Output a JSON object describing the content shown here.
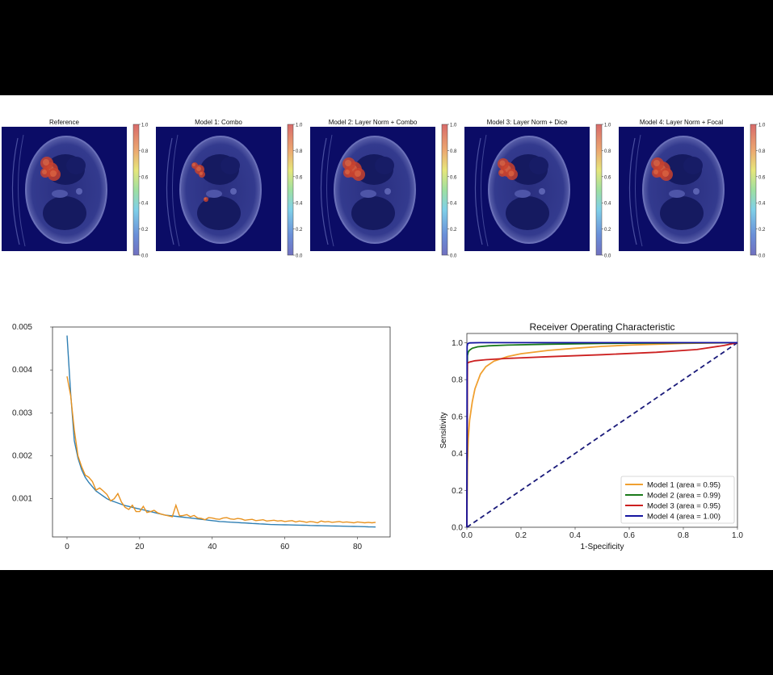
{
  "panels": [
    {
      "title": "Reference",
      "tumor": [
        [
          63,
          210,
          9
        ],
        [
          58,
          202,
          8
        ],
        [
          67,
          216,
          8
        ],
        [
          56,
          214,
          6
        ]
      ]
    },
    {
      "title": "Model 1: Combo",
      "tumor": [
        [
          247,
          210,
          6
        ],
        [
          241,
          205,
          4
        ],
        [
          250,
          216,
          4
        ],
        [
          255,
          247,
          3
        ]
      ]
    },
    {
      "title": "Model 2: Layer Norm + Combo",
      "tumor": [
        [
          438,
          210,
          10
        ],
        [
          432,
          203,
          8
        ],
        [
          444,
          216,
          8
        ],
        [
          431,
          214,
          6
        ]
      ]
    },
    {
      "title": "Model 3: Layer Norm + Dice",
      "tumor": [
        [
          629,
          210,
          9
        ],
        [
          623,
          203,
          7
        ],
        [
          634,
          216,
          7
        ],
        [
          622,
          214,
          5
        ]
      ]
    },
    {
      "title": "Model 4: Layer Norm + Focal",
      "tumor": [
        [
          820,
          210,
          10
        ],
        [
          814,
          203,
          8
        ],
        [
          825,
          216,
          8
        ],
        [
          813,
          214,
          6
        ]
      ]
    }
  ],
  "colorbar_ticks": [
    "0.0",
    "0.2",
    "0.4",
    "0.6",
    "0.8",
    "1.0"
  ],
  "colors": {
    "overlay_bg": "#0b0c66",
    "loss_train": "#2f7fb3",
    "loss_val": "#e8921f",
    "roc_model1": "#f0a030",
    "roc_model2": "#1a7a1a",
    "roc_model3": "#cc2020",
    "roc_model4": "#1515a0",
    "roc_diagonal": "#1a1a7a"
  },
  "chart_data": [
    {
      "type": "line",
      "title": "",
      "xlabel": "",
      "ylabel": "",
      "xlim": [
        -4,
        89
      ],
      "ylim": [
        0.00011,
        0.005
      ],
      "xticks": [
        0,
        20,
        40,
        60,
        80
      ],
      "yticks": [
        0.001,
        0.002,
        0.003,
        0.004,
        0.005
      ],
      "ytick_labels": [
        "0.001",
        "0.002",
        "0.003",
        "0.004",
        "0.005"
      ],
      "series": [
        {
          "values": [
            0.0048,
            0.00345,
            0.00235,
            0.00195,
            0.00168,
            0.0015,
            0.00138,
            0.00128,
            0.00118,
            0.00112,
            0.00106,
            0.001,
            0.00096,
            0.00093,
            0.0009,
            0.00087,
            0.00084,
            0.00082,
            0.0008,
            0.00078,
            0.00076,
            0.00074,
            0.00072,
            0.0007,
            0.00068,
            0.00066,
            0.00064,
            0.00062,
            0.00061,
            0.0006,
            0.00059,
            0.00058,
            0.00057,
            0.00056,
            0.00055,
            0.00054,
            0.00053,
            0.00052,
            0.00051,
            0.0005,
            0.00049,
            0.00048,
            0.00047,
            0.000465,
            0.00046,
            0.000455,
            0.00045,
            0.000445,
            0.00044,
            0.000435,
            0.00043,
            0.000425,
            0.00042,
            0.000415,
            0.00041,
            0.000405,
            0.0004,
            0.000398,
            0.000396,
            0.000394,
            0.000392,
            0.00039,
            0.000388,
            0.000386,
            0.000384,
            0.000382,
            0.00038,
            0.000378,
            0.000376,
            0.000374,
            0.000372,
            0.00037,
            0.000368,
            0.000366,
            0.000364,
            0.000362,
            0.00036,
            0.000358,
            0.000356,
            0.000354,
            0.000352,
            0.00035,
            0.000348,
            0.000346,
            0.000344,
            0.000342
          ]
        },
        {
          "values": [
            0.00385,
            0.0034,
            0.0026,
            0.002,
            0.00175,
            0.00155,
            0.0015,
            0.0014,
            0.0012,
            0.00125,
            0.00118,
            0.0011,
            0.00095,
            0.001,
            0.00112,
            0.00092,
            0.0008,
            0.00075,
            0.00085,
            0.0007,
            0.0007,
            0.00082,
            0.00068,
            0.0007,
            0.00073,
            0.00067,
            0.00064,
            0.00062,
            0.0006,
            0.00058,
            0.00085,
            0.0006,
            0.00061,
            0.00063,
            0.00058,
            0.00061,
            0.00055,
            0.00054,
            0.00051,
            0.00056,
            0.00055,
            0.00053,
            0.00052,
            0.00055,
            0.00056,
            0.00053,
            0.00052,
            0.00054,
            0.00053,
            0.0005,
            0.00051,
            0.00052,
            0.00049,
            0.0005,
            0.00051,
            0.00048,
            0.00049,
            0.0005,
            0.00048,
            0.00049,
            0.00047,
            0.00048,
            0.00049,
            0.00046,
            0.00048,
            0.00047,
            0.00045,
            0.00047,
            0.00046,
            0.00044,
            0.00048,
            0.00046,
            0.00047,
            0.00045,
            0.00046,
            0.00047,
            0.00045,
            0.00046,
            0.00045,
            0.00044,
            0.00046,
            0.00045,
            0.00044,
            0.00045,
            0.00044,
            0.00045
          ]
        }
      ]
    },
    {
      "type": "line",
      "title": "Receiver Operating Characteristic",
      "xlabel": "1-Specificity",
      "ylabel": "Sensitivity",
      "xlim": [
        0,
        1
      ],
      "ylim": [
        0,
        1.05
      ],
      "grid": false,
      "legend_position": "bottom-right",
      "xticks": [
        "0.0",
        "0.2",
        "0.4",
        "0.6",
        "0.8",
        "1.0"
      ],
      "yticks": [
        "0.0",
        "0.2",
        "0.4",
        "0.6",
        "0.8",
        "1.0"
      ],
      "series": [
        {
          "name": "Model 1 (area = 0.95)",
          "x": [
            0,
            0.002,
            0.005,
            0.01,
            0.02,
            0.03,
            0.05,
            0.07,
            0.1,
            0.15,
            0.2,
            0.3,
            0.4,
            0.5,
            0.6,
            0.7,
            0.8,
            0.9,
            1.0
          ],
          "y": [
            0,
            0.35,
            0.48,
            0.58,
            0.68,
            0.75,
            0.83,
            0.87,
            0.9,
            0.925,
            0.94,
            0.958,
            0.97,
            0.98,
            0.987,
            0.992,
            0.996,
            0.998,
            1.0
          ]
        },
        {
          "name": "Model 2 (area = 0.99)",
          "x": [
            0,
            0.002,
            0.005,
            0.01,
            0.02,
            0.04,
            0.08,
            0.15,
            0.3,
            0.5,
            0.7,
            1.0
          ],
          "y": [
            0,
            0.93,
            0.95,
            0.96,
            0.97,
            0.978,
            0.983,
            0.987,
            0.992,
            0.996,
            0.998,
            1.0
          ]
        },
        {
          "name": "Model 3 (area = 0.95)",
          "x": [
            0,
            0.002,
            0.01,
            0.03,
            0.07,
            0.15,
            0.3,
            0.5,
            0.7,
            0.85,
            0.95,
            1.0
          ],
          "y": [
            0,
            0.89,
            0.895,
            0.902,
            0.908,
            0.915,
            0.924,
            0.935,
            0.948,
            0.963,
            0.985,
            1.0
          ]
        },
        {
          "name": "Model 4 (area = 1.00)",
          "x": [
            0,
            0.001,
            0.003,
            0.01,
            0.05,
            0.2,
            0.5,
            1.0
          ],
          "y": [
            0,
            0.98,
            0.995,
            0.999,
            1.0,
            1.0,
            1.0,
            1.0
          ]
        },
        {
          "x": [
            0,
            1
          ],
          "y": [
            0,
            1
          ]
        }
      ]
    }
  ]
}
